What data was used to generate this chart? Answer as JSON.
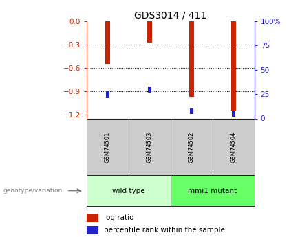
{
  "title": "GDS3014 / 411",
  "samples": [
    "GSM74501",
    "GSM74503",
    "GSM74502",
    "GSM74504"
  ],
  "log_ratios": [
    -0.55,
    -0.27,
    -0.97,
    -1.15
  ],
  "percentile_ranks": [
    25,
    30,
    8,
    5
  ],
  "groups": [
    {
      "label": "wild type",
      "indices": [
        0,
        1
      ],
      "color": "#ccffcc"
    },
    {
      "label": "mmi1 mutant",
      "indices": [
        2,
        3
      ],
      "color": "#66ff66"
    }
  ],
  "left_ylim": [
    -1.25,
    0.0
  ],
  "left_yticks": [
    0.0,
    -0.3,
    -0.6,
    -0.9,
    -1.2
  ],
  "right_ylim": [
    0,
    100
  ],
  "right_yticks": [
    0,
    25,
    50,
    75,
    100
  ],
  "bar_color": "#cc2200",
  "percentile_color": "#2222cc",
  "bar_width": 0.12,
  "title_fontsize": 10,
  "tick_fontsize": 7.5,
  "left_axis_color": "#cc2200",
  "right_axis_color": "#2222cc",
  "genotype_label": "genotype/variation",
  "legend_log_ratio": "log ratio",
  "legend_percentile": "percentile rank within the sample",
  "plot_bgcolor": "#ffffff",
  "sample_box_color": "#cccccc",
  "grid_ticks": [
    -0.3,
    -0.6,
    -0.9
  ]
}
